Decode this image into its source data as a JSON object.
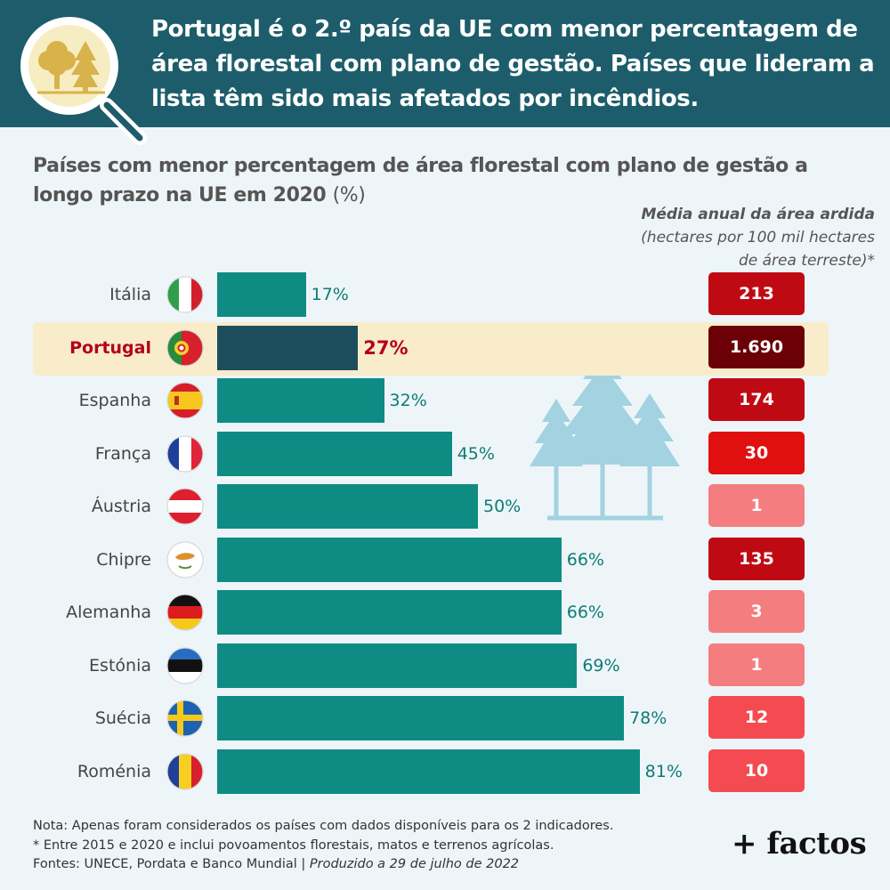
{
  "header": {
    "title": "Portugal é o 2.º país da UE com menor percentagem de área florestal com plano de gestão. Países que lideram a lista têm sido mais afetados por incêndios.",
    "icon": "magnifier-forest-icon"
  },
  "subtitle": {
    "text": "Países com menor percentagem de área florestal com plano de gestão a longo prazo na UE em 2020",
    "unit": "(%)"
  },
  "side_header": {
    "line1": "Média anual da área ardida",
    "line2": "(hectares por 100 mil hectares",
    "line3": "de área terreste)*"
  },
  "chart_data": {
    "type": "bar",
    "orientation": "horizontal",
    "title": "Países com menor percentagem de área florestal com plano de gestão a longo prazo na UE em 2020 (%)",
    "categories": [
      "Itália",
      "Portugal",
      "Espanha",
      "França",
      "Áustria",
      "Chipre",
      "Alemanha",
      "Estónia",
      "Suécia",
      "Roménia"
    ],
    "values": [
      17,
      27,
      32,
      45,
      50,
      66,
      66,
      69,
      78,
      81
    ],
    "value_labels": [
      "17%",
      "27%",
      "32%",
      "45%",
      "50%",
      "66%",
      "66%",
      "69%",
      "78%",
      "81%"
    ],
    "highlight": "Portugal",
    "unit": "%",
    "xlim": [
      0,
      100
    ],
    "colors": {
      "bar": "#0e8c84",
      "bar_highlight": "#1d4e5e",
      "highlight_bg": "#f8eccb"
    },
    "burned_area": {
      "title": "Média anual da área ardida (hectares por 100 mil hectares de área terreste)*",
      "values": [
        213,
        1690,
        174,
        30,
        1,
        135,
        3,
        1,
        12,
        10
      ],
      "labels": [
        "213",
        "1.690",
        "174",
        "30",
        "1",
        "135",
        "3",
        "1",
        "12",
        "10"
      ],
      "colors": [
        "#bf0a14",
        "#6b0006",
        "#bf0a14",
        "#e01010",
        "#f47d80",
        "#bf0a14",
        "#f47d80",
        "#f47d80",
        "#f44b53",
        "#f44b53"
      ]
    },
    "flags": [
      "flag-italy-icon",
      "flag-portugal-icon",
      "flag-spain-icon",
      "flag-france-icon",
      "flag-austria-icon",
      "flag-cyprus-icon",
      "flag-germany-icon",
      "flag-estonia-icon",
      "flag-sweden-icon",
      "flag-romania-icon"
    ]
  },
  "notes": {
    "line1": "Nota: Apenas foram considerados os países com dados disponíveis para os 2 indicadores.",
    "line2": "* Entre 2015 e 2020 e inclui povoamentos florestais, matos e terrenos agrícolas.",
    "line3": "Fontes: UNECE, Pordata e Banco Mundial |",
    "produced": "Produzido a 29 de julho de 2022"
  },
  "brand": "+ factos"
}
